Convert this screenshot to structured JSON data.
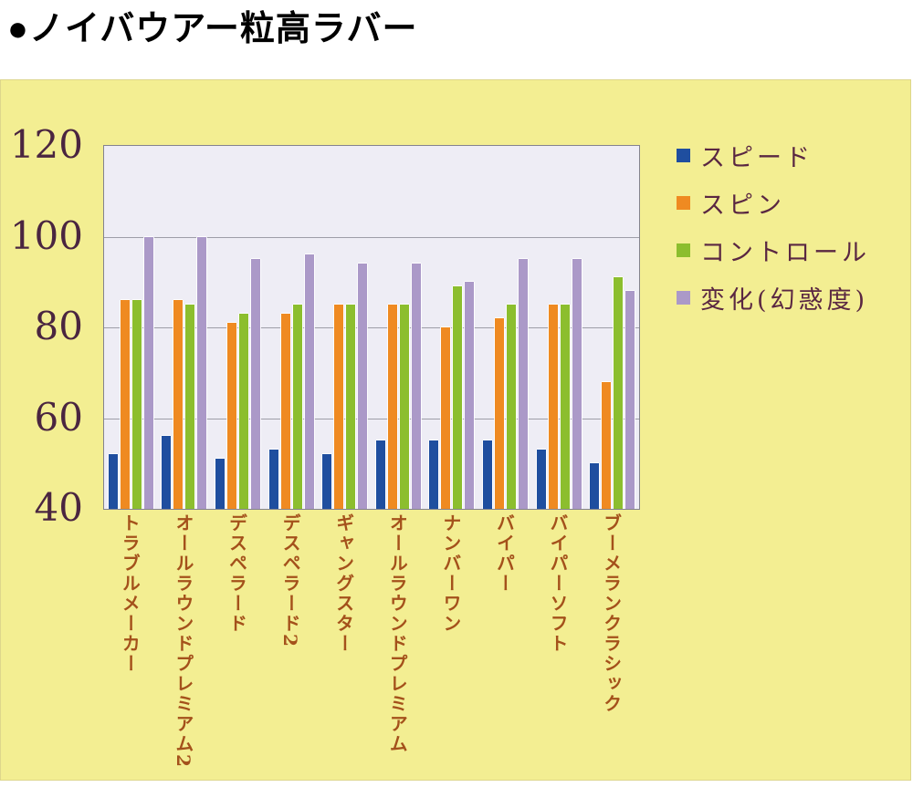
{
  "page": {
    "title": "●ノイバウアー粒高ラバー"
  },
  "chart_data": {
    "type": "bar",
    "title": "●ノイバウアー粒高ラバー",
    "categories": [
      "トラブルメーカー",
      "オールラウンドプレミアム2",
      "デスペラード",
      "デスペラード2",
      "ギャングスター",
      "オールラウンドプレミアム",
      "ナンバーワン",
      "バイパー",
      "バイパーソフト",
      "ブーメランクラシック"
    ],
    "series": [
      {
        "name": "スピード",
        "color": "#1f4e9f",
        "values": [
          52,
          56,
          51,
          53,
          52,
          55,
          55,
          55,
          53,
          50
        ]
      },
      {
        "name": "スピン",
        "color": "#ef8a21",
        "values": [
          86,
          86,
          81,
          83,
          85,
          85,
          80,
          82,
          85,
          68
        ]
      },
      {
        "name": "コントロール",
        "color": "#8cbe2e",
        "values": [
          86,
          85,
          83,
          85,
          85,
          85,
          89,
          85,
          85,
          91
        ]
      },
      {
        "name": "変化(幻惑度)",
        "color": "#ab99c8",
        "values": [
          100,
          100,
          95,
          96,
          94,
          94,
          90,
          95,
          95,
          88
        ]
      }
    ],
    "ylim": [
      40,
      120
    ],
    "yticks": [
      40,
      60,
      80,
      100,
      120
    ],
    "grid": true,
    "legend_position": "right",
    "colors": {
      "plot_background": "#eeedf5",
      "panel_background": "#f3ee92",
      "gridline": "#9e9ea8",
      "y_label_text": "#4a2540",
      "x_label_text": "#a4511b",
      "legend_text": "#5a2742",
      "title_text": "#000000"
    }
  }
}
